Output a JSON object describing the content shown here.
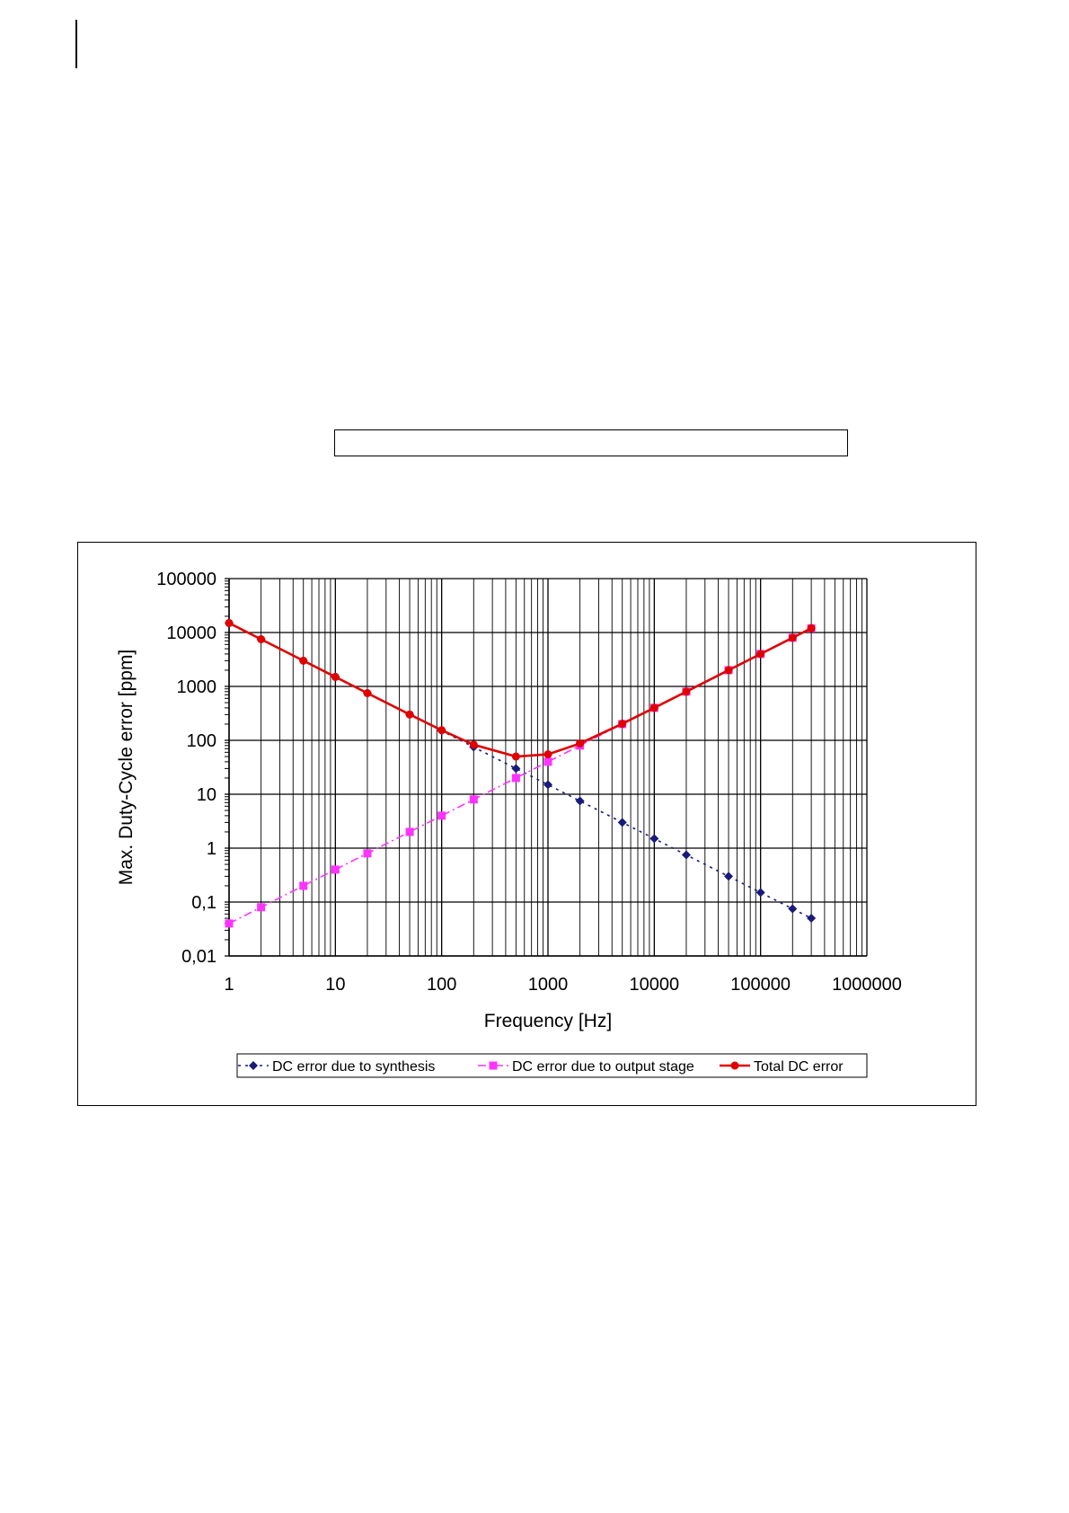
{
  "chart_data": {
    "type": "line",
    "x_scale": "log",
    "y_scale": "log",
    "xlabel": "Frequency [Hz]",
    "ylabel": "Max. Duty-Cycle error [ppm]",
    "xlim": [
      1,
      1000000
    ],
    "ylim": [
      0.01,
      100000
    ],
    "x_ticks": [
      "1",
      "10",
      "100",
      "1000",
      "10000",
      "100000",
      "1000000"
    ],
    "y_ticks": [
      "0,01",
      "0,1",
      "1",
      "10",
      "100",
      "1000",
      "10000",
      "100000"
    ],
    "grid": "major and minor",
    "legend_position": "bottom",
    "series": [
      {
        "name": "DC error due to synthesis",
        "color": "#1a1a7a",
        "line": "dotted",
        "marker": "diamond",
        "x": [
          1,
          2,
          5,
          10,
          20,
          50,
          100,
          200,
          500,
          1000,
          2000,
          5000,
          10000,
          20000,
          50000,
          100000,
          200000,
          300000
        ],
        "y": [
          15000,
          7500,
          3000,
          1500,
          750,
          300,
          150,
          75,
          30,
          15,
          7.5,
          3,
          1.5,
          0.75,
          0.3,
          0.15,
          0.075,
          0.05
        ]
      },
      {
        "name": "DC error due to output stage",
        "color": "#ff33ff",
        "line": "dashdot",
        "marker": "square",
        "x": [
          1,
          2,
          5,
          10,
          20,
          50,
          100,
          200,
          500,
          1000,
          2000,
          5000,
          10000,
          20000,
          50000,
          100000,
          200000,
          300000
        ],
        "y": [
          0.04,
          0.08,
          0.2,
          0.4,
          0.8,
          2,
          4,
          8,
          20,
          40,
          80,
          200,
          400,
          800,
          2000,
          4000,
          8000,
          12000
        ]
      },
      {
        "name": "Total DC error",
        "color": "#e00000",
        "line": "solid",
        "marker": "circle",
        "x": [
          1,
          2,
          5,
          10,
          20,
          50,
          100,
          200,
          500,
          1000,
          2000,
          5000,
          10000,
          20000,
          50000,
          100000,
          200000,
          300000
        ],
        "y": [
          15000,
          7500,
          3000,
          1500,
          750,
          302,
          154,
          83,
          50,
          55,
          87.5,
          203,
          401.5,
          800.75,
          2000.3,
          4000.15,
          8000.075,
          12000.05
        ]
      }
    ]
  }
}
